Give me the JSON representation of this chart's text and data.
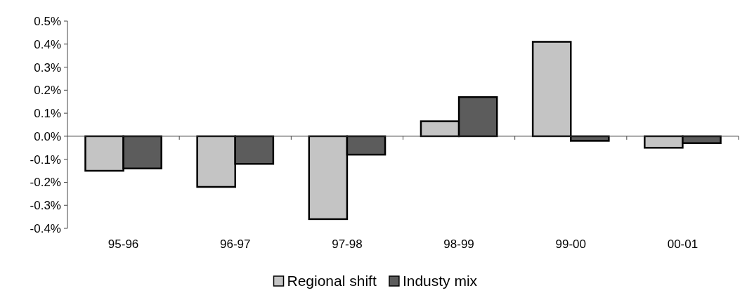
{
  "chart_data": {
    "type": "bar",
    "categories": [
      "95-96",
      "96-97",
      "97-98",
      "98-99",
      "99-00",
      "00-01"
    ],
    "series": [
      {
        "name": "Regional shift",
        "color": "#c4c4c4",
        "values": [
          -0.15,
          -0.22,
          -0.36,
          0.065,
          0.41,
          -0.05
        ]
      },
      {
        "name": "Industy mix",
        "color": "#5c5c5c",
        "values": [
          -0.14,
          -0.12,
          -0.08,
          0.17,
          -0.02,
          -0.03
        ]
      }
    ],
    "ylim": [
      -0.4,
      0.5
    ],
    "yticks": [
      {
        "value": -0.4,
        "label": "-0.4%"
      },
      {
        "value": -0.3,
        "label": "-0.3%"
      },
      {
        "value": -0.2,
        "label": "-0.2%"
      },
      {
        "value": -0.1,
        "label": "-0.1%"
      },
      {
        "value": 0,
        "label": "0.0%"
      },
      {
        "value": 0.1,
        "label": "0.1%"
      },
      {
        "value": 0.2,
        "label": "0.2%"
      },
      {
        "value": 0.3,
        "label": "0.3%"
      },
      {
        "value": 0.4,
        "label": "0.4%"
      },
      {
        "value": 0.5,
        "label": "0.5%"
      }
    ],
    "legend": "bottom"
  }
}
